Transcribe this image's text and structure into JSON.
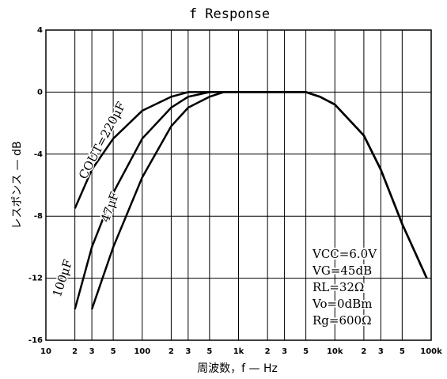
{
  "chart_data": {
    "type": "line",
    "title": "f Response",
    "xlabel": "周波数，f — Hz",
    "ylabel": "レスポンス — dB",
    "xscale": "log",
    "grid": true,
    "xlim": [
      10,
      100000
    ],
    "ylim": [
      -16,
      4
    ],
    "yticks": [
      4,
      0,
      -4,
      -8,
      -12,
      -16
    ],
    "xticks": [
      {
        "value": 10,
        "label": "10"
      },
      {
        "value": 20,
        "label": "2"
      },
      {
        "value": 30,
        "label": "3"
      },
      {
        "value": 50,
        "label": "5"
      },
      {
        "value": 100,
        "label": "100"
      },
      {
        "value": 200,
        "label": "2"
      },
      {
        "value": 300,
        "label": "3"
      },
      {
        "value": 500,
        "label": "5"
      },
      {
        "value": 1000,
        "label": "1k"
      },
      {
        "value": 2000,
        "label": "2"
      },
      {
        "value": 3000,
        "label": "3"
      },
      {
        "value": 5000,
        "label": "5"
      },
      {
        "value": 10000,
        "label": "10k"
      },
      {
        "value": 20000,
        "label": "2"
      },
      {
        "value": 30000,
        "label": "3"
      },
      {
        "value": 50000,
        "label": "5"
      },
      {
        "value": 100000,
        "label": "100k"
      }
    ],
    "x": [
      20,
      30,
      50,
      100,
      200,
      300,
      500,
      700,
      1000,
      2000,
      5000,
      7000,
      10000,
      20000,
      30000,
      50000,
      90000
    ],
    "series": [
      {
        "name": "COUT=220μF",
        "color": "#000000",
        "values": [
          -7.5,
          -5,
          -3,
          -1.2,
          -0.3,
          0,
          0,
          0,
          0,
          0,
          0,
          -0.3,
          -0.8,
          -2.8,
          -5,
          -8.5,
          -12
        ]
      },
      {
        "name": "100μF",
        "color": "#000000",
        "values": [
          -14,
          -10,
          -6.5,
          -3,
          -1,
          -0.3,
          0,
          0,
          0,
          0,
          0,
          -0.3,
          -0.8,
          -2.8,
          -5,
          -8.5,
          -12
        ]
      },
      {
        "name": "47μF",
        "color": "#000000",
        "values": [
          null,
          -14,
          -10,
          -5.5,
          -2.2,
          -1,
          -0.3,
          0,
          0,
          0,
          0,
          -0.3,
          -0.8,
          -2.8,
          -5,
          -8.5,
          -12
        ]
      }
    ],
    "annotations": [
      "VCC=6.0V",
      "VG=45dB",
      "RL=32Ω",
      "Vo=0dBm",
      "Rg=600Ω"
    ]
  }
}
